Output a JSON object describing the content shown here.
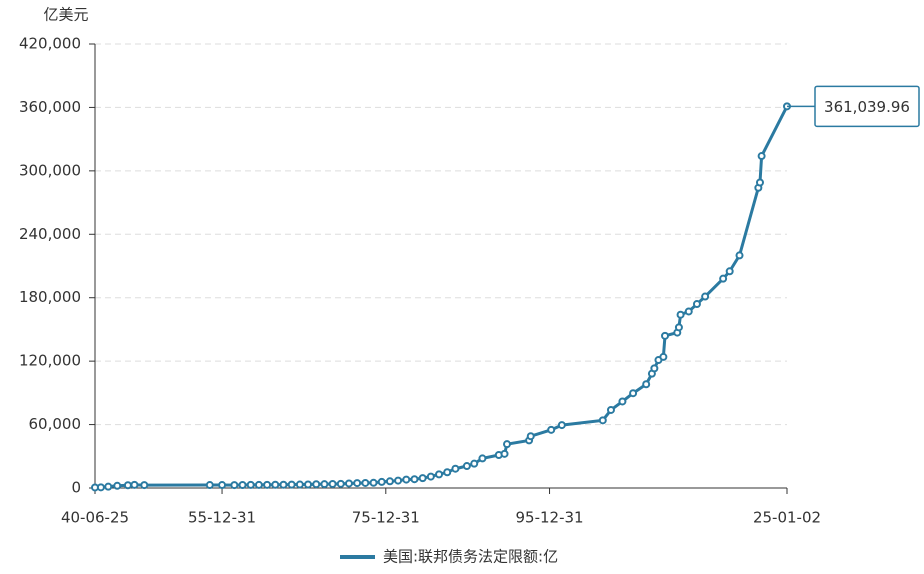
{
  "chart_data": {
    "type": "line",
    "y_axis_label": "亿美元",
    "x": [
      1940.48,
      1941.2,
      1942.1,
      1943.2,
      1944.5,
      1945.3,
      1946.5,
      1954.5,
      1956,
      1957.5,
      1958.5,
      1959.5,
      1960.5,
      1961.5,
      1962.5,
      1963.5,
      1964.5,
      1965.5,
      1966.5,
      1967.5,
      1968.5,
      1969.5,
      1970.5,
      1971.5,
      1972.5,
      1973.5,
      1974.5,
      1975.5,
      1976.5,
      1977.5,
      1978.5,
      1979.5,
      1980.5,
      1981.5,
      1982.5,
      1983.5,
      1984.5,
      1985.9,
      1986.8,
      1987.8,
      1989.8,
      1990.5,
      1990.8,
      1993.5,
      1993.7,
      1996.2,
      1997.5,
      2002.5,
      2003.5,
      2004.9,
      2006.2,
      2007.8,
      2008.5,
      2008.8,
      2009.3,
      2009.9,
      2010.1,
      2011.6,
      2011.8,
      2012.0,
      2013.0,
      2014.0,
      2015.0,
      2017.2,
      2018.0,
      2019.2,
      2021.5,
      2021.7,
      2021.9,
      2025.0
    ],
    "series": [
      {
        "name": "美国:联邦债务法定限额:亿",
        "color": "#2b7aa1",
        "values": [
          490,
          650,
          1250,
          2100,
          2600,
          3000,
          2750,
          2810,
          2780,
          2750,
          2830,
          2950,
          2930,
          2980,
          3080,
          3090,
          3240,
          3280,
          3300,
          3580,
          3650,
          3770,
          3950,
          4300,
          4650,
          4750,
          4950,
          5770,
          6360,
          7000,
          7980,
          8300,
          9350,
          10790,
          12900,
          14900,
          18230,
          20790,
          23000,
          28000,
          31220,
          32300,
          41450,
          45000,
          49000,
          55000,
          59500,
          64000,
          73840,
          81840,
          89650,
          98150,
          108150,
          113150,
          121040,
          124000,
          143940,
          147000,
          152000,
          163940,
          167000,
          174000,
          181130,
          198000,
          205000,
          220000,
          284000,
          289000,
          314000,
          361039.96
        ],
        "value_labels": [
          null,
          null,
          null,
          null,
          null,
          null,
          null,
          null,
          null,
          null,
          null,
          null,
          null,
          null,
          null,
          null,
          null,
          null,
          null,
          null,
          null,
          null,
          null,
          null,
          null,
          null,
          null,
          null,
          null,
          null,
          null,
          null,
          null,
          null,
          null,
          null,
          null,
          null,
          null,
          null,
          null,
          null,
          null,
          null,
          null,
          null,
          null,
          null,
          null,
          null,
          null,
          null,
          null,
          null,
          null,
          null,
          null,
          null,
          null,
          null,
          null,
          null,
          null,
          null,
          null,
          null,
          null,
          null,
          null,
          "361,039.96"
        ]
      }
    ],
    "xlim": [
      1940.48,
      2025.0
    ],
    "xticks": [
      {
        "value": 1940.48,
        "label": "40-06-25"
      },
      {
        "value": 1955.997,
        "label": "55-12-31"
      },
      {
        "value": 1975.997,
        "label": "75-12-31"
      },
      {
        "value": 1995.997,
        "label": "95-12-31"
      },
      {
        "value": 2025.0,
        "label": "25-01-02"
      }
    ],
    "ylim": [
      0,
      420000
    ],
    "yticks": [
      0,
      {
        "value": 60000,
        "label": "60,000"
      },
      {
        "value": 120000,
        "label": "120,000"
      },
      {
        "value": 180000,
        "label": "180,000"
      },
      {
        "value": 240000,
        "label": "240,000"
      },
      {
        "value": 300000,
        "label": "300,000"
      },
      {
        "value": 360000,
        "label": "360,000"
      },
      {
        "value": 420000,
        "label": "420,000"
      }
    ],
    "grid": true
  }
}
